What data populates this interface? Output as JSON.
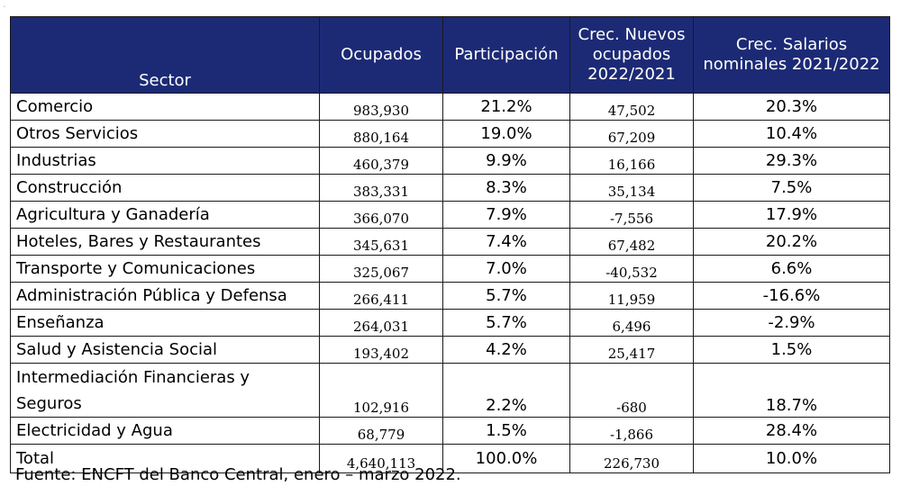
{
  "table": {
    "headers": [
      "Sector",
      "Ocupados",
      "Participación",
      "Crec. Nuevos ocupados 2022/2021",
      "Crec. Salarios nominales 2021/2022"
    ],
    "rows": [
      {
        "sector": "Comercio",
        "ocupados": "983,930",
        "participacion": "21.2%",
        "crec_nuevos": "47,502",
        "crec_salarios": "20.3%"
      },
      {
        "sector": "Otros Servicios",
        "ocupados": "880,164",
        "participacion": "19.0%",
        "crec_nuevos": "67,209",
        "crec_salarios": "10.4%"
      },
      {
        "sector": "Industrias",
        "ocupados": "460,379",
        "participacion": "9.9%",
        "crec_nuevos": "16,166",
        "crec_salarios": "29.3%"
      },
      {
        "sector": "Construcción",
        "ocupados": "383,331",
        "participacion": "8.3%",
        "crec_nuevos": "35,134",
        "crec_salarios": "7.5%"
      },
      {
        "sector": "Agricultura y Ganadería",
        "ocupados": "366,070",
        "participacion": "7.9%",
        "crec_nuevos": "-7,556",
        "crec_salarios": "17.9%"
      },
      {
        "sector": "Hoteles, Bares y Restaurantes",
        "ocupados": "345,631",
        "participacion": "7.4%",
        "crec_nuevos": "67,482",
        "crec_salarios": "20.2%"
      },
      {
        "sector": "Transporte y Comunicaciones",
        "ocupados": "325,067",
        "participacion": "7.0%",
        "crec_nuevos": "-40,532",
        "crec_salarios": "6.6%"
      },
      {
        "sector": "Administración Pública y Defensa",
        "ocupados": "266,411",
        "participacion": "5.7%",
        "crec_nuevos": "11,959",
        "crec_salarios": "-16.6%"
      },
      {
        "sector": "Enseñanza",
        "ocupados": "264,031",
        "participacion": "5.7%",
        "crec_nuevos": "6,496",
        "crec_salarios": "-2.9%"
      },
      {
        "sector": "Salud y Asistencia Social",
        "ocupados": "193,402",
        "participacion": "4.2%",
        "crec_nuevos": "25,417",
        "crec_salarios": "1.5%"
      },
      {
        "sector": "Intermediación Financieras y Seguros",
        "sector_line1": "Intermediación Financieras y",
        "sector_line2": "Seguros",
        "ocupados": "102,916",
        "participacion": "2.2%",
        "crec_nuevos": "-680",
        "crec_salarios": "18.7%"
      },
      {
        "sector": "Electricidad y Agua",
        "ocupados": "68,779",
        "participacion": "1.5%",
        "crec_nuevos": "-1,866",
        "crec_salarios": "28.4%"
      }
    ],
    "total": {
      "sector": "Total",
      "ocupados": "4,640,113",
      "participacion": "100.0%",
      "crec_nuevos": "226,730",
      "crec_salarios": "10.0%"
    }
  },
  "source_note": "Fuente: ENCFT del Banco Central, enero – marzo 2022.",
  "corner_mark": "ʼ",
  "colors": {
    "header_background": "#1c2a75",
    "header_text": "#ffffff",
    "border": "#1a1a1a"
  }
}
